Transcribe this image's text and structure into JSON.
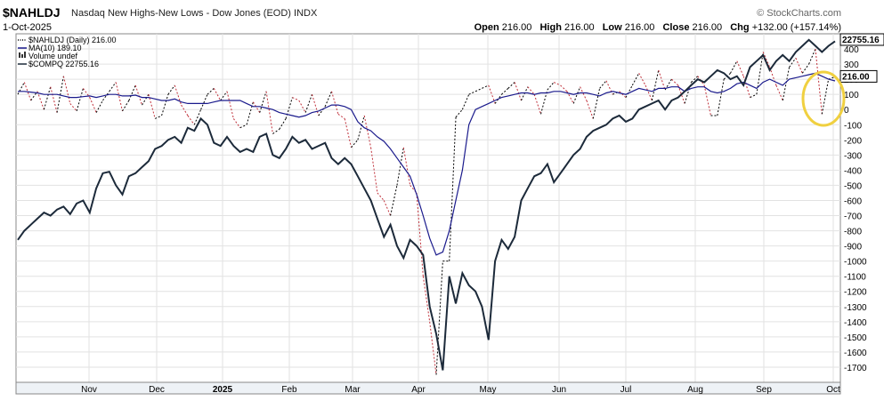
{
  "header": {
    "symbol": "$NAHLDJ",
    "description": "Nasdaq New Highs-New Lows - Dow Jones (EOD)",
    "exchange": "INDX",
    "date": "1-Oct-2025",
    "brand": "© StockCharts.com",
    "open_label": "Open",
    "open": "216.00",
    "high_label": "High",
    "high": "216.00",
    "low_label": "Low",
    "low": "216.00",
    "close_label": "Close",
    "close": "216.00",
    "chg_label": "Chg",
    "chg": "+132.00 (+157.14%)"
  },
  "legend": [
    {
      "text": "$NAHLDJ (Daily) 216.00",
      "color": "#000000",
      "style": "dotted"
    },
    {
      "text": "MA(10) 189.10",
      "color": "#1a1a8c",
      "style": "solid"
    },
    {
      "text": "Volume undef",
      "color": "#333333",
      "style": "bars"
    },
    {
      "text": "$COMPQ 22755.16",
      "color": "#1c2a3a",
      "style": "solid"
    }
  ],
  "chart_data": {
    "type": "line",
    "title": "$NAHLDJ Nasdaq New Highs-New Lows - Dow Jones (EOD)",
    "y_ticks": [
      400,
      300,
      200,
      100,
      0,
      -100,
      -200,
      -300,
      -400,
      -500,
      -600,
      -700,
      -800,
      -900,
      -1000,
      -1100,
      -1200,
      -1300,
      -1400,
      -1500,
      -1600,
      -1700
    ],
    "ylim": [
      -1800,
      500
    ],
    "x_labels": [
      "Nov",
      "Dec",
      "2025",
      "Feb",
      "Mar",
      "Apr",
      "May",
      "Jun",
      "Jul",
      "Aug",
      "Sep",
      "Oct"
    ],
    "grid": true,
    "price_labels": {
      "compq": "22755.16",
      "nahldj": "216.00"
    },
    "series": [
      {
        "name": "$NAHLDJ (Daily)",
        "color": "#000000",
        "values": [
          100,
          180,
          60,
          120,
          0,
          150,
          -20,
          220,
          40,
          -10,
          140,
          80,
          -20,
          60,
          120,
          180,
          -10,
          60,
          160,
          30,
          100,
          -60,
          -40,
          100,
          160,
          30,
          -40,
          -100,
          0,
          100,
          140,
          60,
          120,
          -60,
          -120,
          -100,
          50,
          -20,
          120,
          -160,
          -130,
          -60,
          80,
          60,
          -20,
          100,
          -40,
          20,
          120,
          -30,
          -60,
          -250,
          -200,
          -40,
          -250,
          -550,
          -600,
          -700,
          -500,
          -250,
          -500,
          -550,
          -1100,
          -1400,
          -1750,
          -1000,
          -1000,
          -50,
          0,
          100,
          120,
          140,
          160,
          40,
          100,
          140,
          180,
          60,
          150,
          100,
          -30,
          130,
          180,
          160,
          120,
          40,
          150,
          60,
          -60,
          140,
          190,
          100,
          120,
          80,
          160,
          240,
          160,
          60,
          260,
          130,
          200,
          160,
          40,
          180,
          220,
          160,
          -40,
          -40,
          200,
          240,
          320,
          220,
          80,
          100,
          380,
          280,
          160,
          60,
          280,
          340,
          240,
          300,
          400,
          -30,
          200,
          216
        ],
        "style": "dotted"
      },
      {
        "name": "MA(10)",
        "color": "#1a1a8c",
        "values": [
          120,
          120,
          115,
          110,
          100,
          100,
          100,
          90,
          80,
          80,
          85,
          90,
          80,
          90,
          100,
          100,
          90,
          90,
          95,
          80,
          80,
          70,
          60,
          60,
          70,
          50,
          40,
          40,
          40,
          40,
          50,
          60,
          60,
          60,
          60,
          40,
          20,
          20,
          10,
          0,
          -20,
          -30,
          -40,
          -50,
          -40,
          -20,
          -10,
          10,
          30,
          30,
          20,
          0,
          -80,
          -120,
          -140,
          -180,
          -210,
          -260,
          -320,
          -380,
          -440,
          -560,
          -700,
          -850,
          -960,
          -940,
          -800,
          -600,
          -400,
          -100,
          0,
          20,
          40,
          60,
          80,
          90,
          100,
          110,
          110,
          100,
          110,
          110,
          120,
          120,
          110,
          100,
          110,
          110,
          100,
          90,
          110,
          120,
          110,
          100,
          120,
          140,
          130,
          120,
          140,
          140,
          150,
          150,
          120,
          140,
          150,
          150,
          120,
          110,
          120,
          140,
          170,
          180,
          160,
          140,
          180,
          200,
          180,
          160,
          200,
          210,
          220,
          230,
          240,
          220,
          200,
          189
        ],
        "style": "solid"
      },
      {
        "name": "$COMPQ",
        "color": "#1c2a3a",
        "values": [
          -860,
          -800,
          -760,
          -720,
          -680,
          -700,
          -660,
          -640,
          -690,
          -620,
          -600,
          -680,
          -520,
          -420,
          -410,
          -500,
          -560,
          -440,
          -420,
          -380,
          -340,
          -260,
          -240,
          -200,
          -180,
          -220,
          -120,
          -140,
          -60,
          -100,
          -220,
          -240,
          -180,
          -240,
          -280,
          -260,
          -280,
          -180,
          -160,
          -300,
          -320,
          -260,
          -180,
          -220,
          -200,
          -260,
          -240,
          -220,
          -320,
          -360,
          -320,
          -360,
          -440,
          -520,
          -600,
          -720,
          -840,
          -760,
          -900,
          -980,
          -860,
          -900,
          -960,
          -1300,
          -1480,
          -1720,
          -1100,
          -1280,
          -1080,
          -1160,
          -1200,
          -1300,
          -1520,
          -1000,
          -860,
          -920,
          -840,
          -600,
          -520,
          -440,
          -420,
          -360,
          -480,
          -420,
          -360,
          -300,
          -260,
          -180,
          -140,
          -120,
          -100,
          -60,
          -40,
          -80,
          -60,
          0,
          20,
          40,
          60,
          0,
          60,
          80,
          120,
          160,
          200,
          180,
          220,
          260,
          240,
          200,
          220,
          160,
          280,
          320,
          360,
          260,
          320,
          360,
          320,
          380,
          420,
          460,
          420,
          380,
          420,
          451
        ],
        "style": "solid"
      }
    ]
  }
}
